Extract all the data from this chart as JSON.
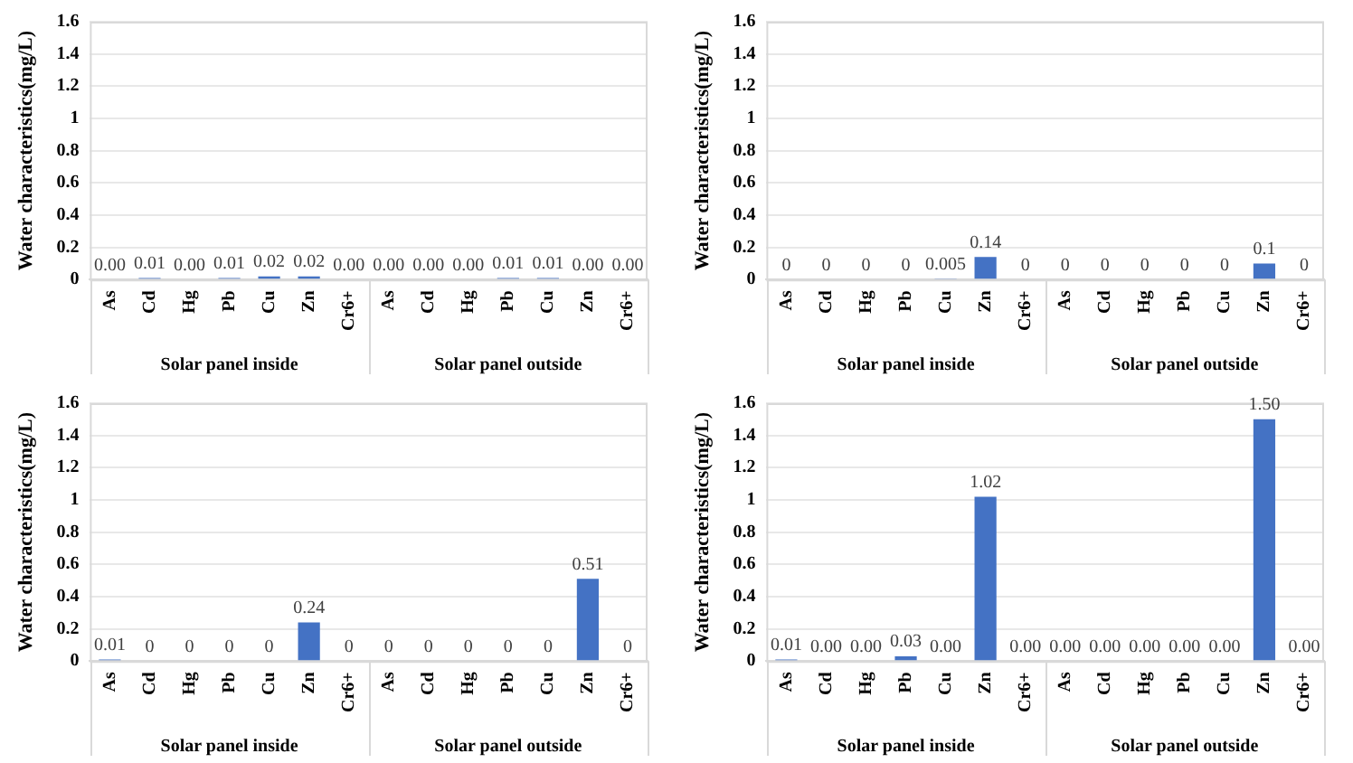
{
  "chart_data": [
    {
      "type": "bar",
      "ylabel": "Water characteristics(mg/L)",
      "categories": [
        "As",
        "Cd",
        "Hg",
        "Pb",
        "Cu",
        "Zn",
        "Cr6+",
        "As",
        "Cd",
        "Hg",
        "Pb",
        "Cu",
        "Zn",
        "Cr6+"
      ],
      "values": [
        0,
        0.01,
        0,
        0.01,
        0.02,
        0.02,
        0,
        0,
        0,
        0,
        0.01,
        0.01,
        0,
        0
      ],
      "value_labels": [
        "0.00",
        "0.01",
        "0.00",
        "0.01",
        "0.02",
        "0.02",
        "0.00",
        "0.00",
        "0.00",
        "0.00",
        "0.01",
        "0.01",
        "0.00",
        "0.00"
      ],
      "color": "#4472c4",
      "ylim": [
        0,
        1.6
      ],
      "yticks": [
        0,
        0.2,
        0.4,
        0.6,
        0.8,
        1,
        1.2,
        1.4,
        1.6
      ],
      "grid": "y",
      "annotations": [
        "Solar panel inside",
        "Solar panel outside"
      ]
    },
    {
      "type": "bar",
      "ylabel": "Water characteristics(mg/L)",
      "categories": [
        "As",
        "Cd",
        "Hg",
        "Pb",
        "Cu",
        "Zn",
        "Cr6+",
        "As",
        "Cd",
        "Hg",
        "Pb",
        "Cu",
        "Zn",
        "Cr6+"
      ],
      "values": [
        0,
        0,
        0,
        0,
        0.005,
        0.14,
        0,
        0,
        0,
        0,
        0,
        0,
        0.1,
        0
      ],
      "value_labels": [
        "0",
        "0",
        "0",
        "0",
        "0.005",
        "0.14",
        "0",
        "0",
        "0",
        "0",
        "0",
        "0",
        "0.1",
        "0"
      ],
      "color": "#4472c4",
      "ylim": [
        0,
        1.6
      ],
      "yticks": [
        0,
        0.2,
        0.4,
        0.6,
        0.8,
        1,
        1.2,
        1.4,
        1.6
      ],
      "grid": "y",
      "annotations": [
        "Solar panel inside",
        "Solar panel outside"
      ]
    },
    {
      "type": "bar",
      "ylabel": "Water characteristics(mg/L)",
      "categories": [
        "As",
        "Cd",
        "Hg",
        "Pb",
        "Cu",
        "Zn",
        "Cr6+",
        "As",
        "Cd",
        "Hg",
        "Pb",
        "Cu",
        "Zn",
        "Cr6+"
      ],
      "values": [
        0.01,
        0,
        0,
        0,
        0,
        0.24,
        0,
        0,
        0,
        0,
        0,
        0,
        0.51,
        0
      ],
      "value_labels": [
        "0.01",
        "0",
        "0",
        "0",
        "0",
        "0.24",
        "0",
        "0",
        "0",
        "0",
        "0",
        "0",
        "0.51",
        "0"
      ],
      "color": "#4472c4",
      "ylim": [
        0,
        1.6
      ],
      "yticks": [
        0,
        0.2,
        0.4,
        0.6,
        0.8,
        1,
        1.2,
        1.4,
        1.6
      ],
      "grid": "y",
      "annotations": [
        "Solar panel inside",
        "Solar panel outside"
      ]
    },
    {
      "type": "bar",
      "ylabel": "Water characteristics(mg/L)",
      "categories": [
        "As",
        "Cd",
        "Hg",
        "Pb",
        "Cu",
        "Zn",
        "Cr6+",
        "As",
        "Cd",
        "Hg",
        "Pb",
        "Cu",
        "Zn",
        "Cr6+"
      ],
      "values": [
        0.01,
        0,
        0,
        0.03,
        0,
        1.02,
        0,
        0,
        0,
        0,
        0,
        0,
        1.5,
        0
      ],
      "value_labels": [
        "0.01",
        "0.00",
        "0.00",
        "0.03",
        "0.00",
        "1.02",
        "0.00",
        "0.00",
        "0.00",
        "0.00",
        "0.00",
        "0.00",
        "1.50",
        "0.00"
      ],
      "color": "#4472c4",
      "ylim": [
        0,
        1.6
      ],
      "yticks": [
        0,
        0.2,
        0.4,
        0.6,
        0.8,
        1,
        1.2,
        1.4,
        1.6
      ],
      "grid": "y",
      "annotations": [
        "Solar panel inside",
        "Solar panel outside"
      ]
    }
  ]
}
